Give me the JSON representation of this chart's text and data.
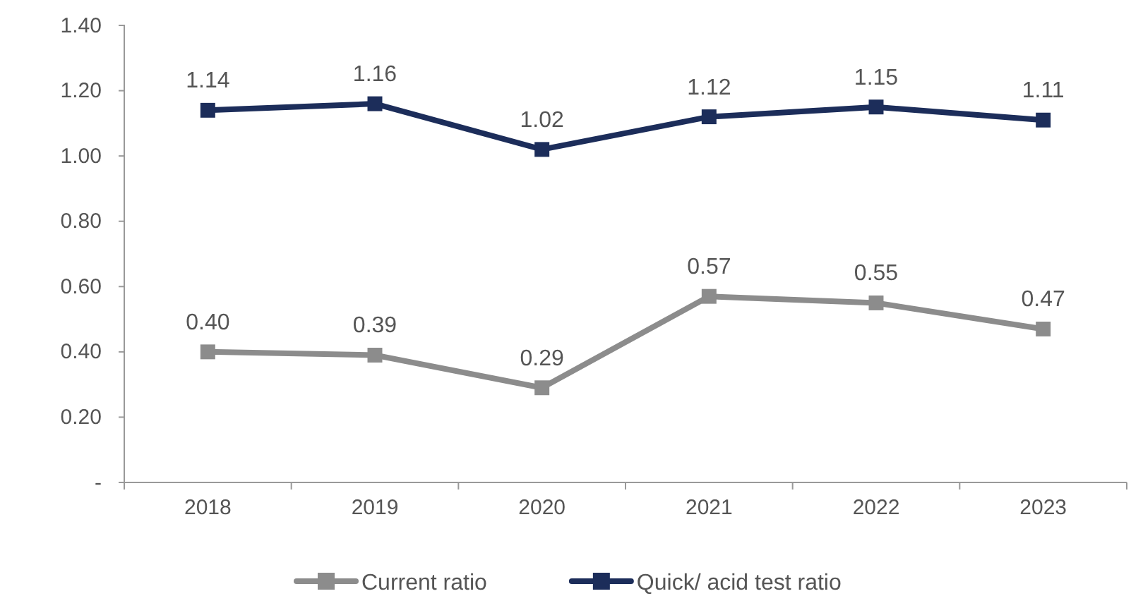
{
  "chart_data": {
    "type": "line",
    "categories": [
      "2018",
      "2019",
      "2020",
      "2021",
      "2022",
      "2023"
    ],
    "series": [
      {
        "name": "Current ratio",
        "color": "#8c8c8c",
        "values": [
          0.4,
          0.39,
          0.29,
          0.57,
          0.55,
          0.47
        ],
        "value_labels": [
          "0.40",
          "0.39",
          "0.29",
          "0.57",
          "0.55",
          "0.47"
        ]
      },
      {
        "name": "Quick/ acid test ratio",
        "color": "#1c2d5a",
        "values": [
          1.14,
          1.16,
          1.02,
          1.12,
          1.15,
          1.11
        ],
        "value_labels": [
          "1.14",
          "1.16",
          "1.02",
          "1.12",
          "1.15",
          "1.11"
        ]
      }
    ],
    "ylim": [
      0,
      1.4
    ],
    "yticks": [
      {
        "value": 0,
        "label": "-"
      },
      {
        "value": 0.2,
        "label": "0.20"
      },
      {
        "value": 0.4,
        "label": "0.40"
      },
      {
        "value": 0.6,
        "label": "0.60"
      },
      {
        "value": 0.8,
        "label": "0.80"
      },
      {
        "value": 1,
        "label": "1.00"
      },
      {
        "value": 1.2,
        "label": "1.20"
      },
      {
        "value": 1.4,
        "label": "1.40"
      }
    ],
    "legend": "bottom",
    "marker": "square",
    "line_style": "solid",
    "grid": false
  }
}
